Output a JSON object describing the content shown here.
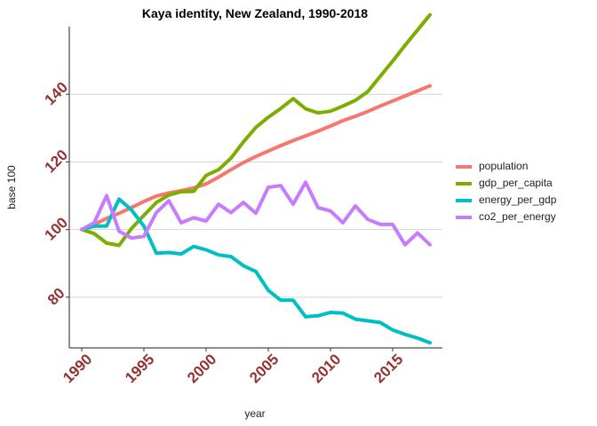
{
  "chart_data": {
    "type": "line",
    "title": "Kaya identity, New Zealand, 1990-2018",
    "xlabel": "year",
    "ylabel": "base 100",
    "xlim": [
      1989,
      2019
    ],
    "ylim": [
      65,
      160
    ],
    "x_ticks": [
      1990,
      1995,
      2000,
      2005,
      2010,
      2015
    ],
    "y_ticks": [
      80,
      100,
      120,
      140
    ],
    "tick_color": "#963232",
    "grid": "horizontal",
    "legend_position": "right",
    "x": [
      1990,
      1991,
      1992,
      1993,
      1994,
      1995,
      1996,
      1997,
      1998,
      1999,
      2000,
      2001,
      2002,
      2003,
      2004,
      2005,
      2006,
      2007,
      2008,
      2009,
      2010,
      2011,
      2012,
      2013,
      2014,
      2015,
      2016,
      2017,
      2018
    ],
    "series": [
      {
        "name": "population",
        "color": "#F8766D",
        "values": [
          100,
          101.5,
          103.3,
          104.8,
          106.5,
          108.3,
          109.9,
          110.8,
          111.5,
          112.3,
          113.5,
          115.5,
          117.7,
          119.8,
          121.6,
          123.2,
          124.8,
          126.3,
          127.7,
          129.1,
          130.6,
          132.2,
          133.5,
          134.9,
          136.5,
          138.0,
          139.5,
          141.0,
          142.5
        ]
      },
      {
        "name": "gdp_per_capita",
        "color": "#7CAE00",
        "values": [
          100,
          98.8,
          96.0,
          95.3,
          100.3,
          104.2,
          108.0,
          110.2,
          111.2,
          111.3,
          116.0,
          117.7,
          121.1,
          125.9,
          130.2,
          133.2,
          135.8,
          138.7,
          135.7,
          134.5,
          135.0,
          136.5,
          138.2,
          140.8,
          145.3,
          149.8,
          154.5,
          159.0,
          163.5
        ]
      },
      {
        "name": "energy_per_gdp",
        "color": "#00BFC4",
        "values": [
          100,
          101.0,
          101.0,
          109.0,
          105.8,
          101.0,
          93.0,
          93.2,
          92.8,
          95.0,
          94.0,
          92.5,
          92.0,
          89.3,
          87.6,
          82.0,
          79.1,
          79.1,
          74.2,
          74.5,
          75.5,
          75.3,
          73.5,
          73.0,
          72.5,
          70.3,
          69.0,
          67.9,
          66.5
        ]
      },
      {
        "name": "co2_per_energy",
        "color": "#C77CFF",
        "values": [
          100,
          102.0,
          110.0,
          99.5,
          97.5,
          98.0,
          105.0,
          108.5,
          102.0,
          103.5,
          102.5,
          107.5,
          105.0,
          108.0,
          104.8,
          112.5,
          113.0,
          107.5,
          114.0,
          106.5,
          105.5,
          102.0,
          107.0,
          103.0,
          101.5,
          101.5,
          95.5,
          99.0,
          95.5
        ]
      }
    ]
  }
}
